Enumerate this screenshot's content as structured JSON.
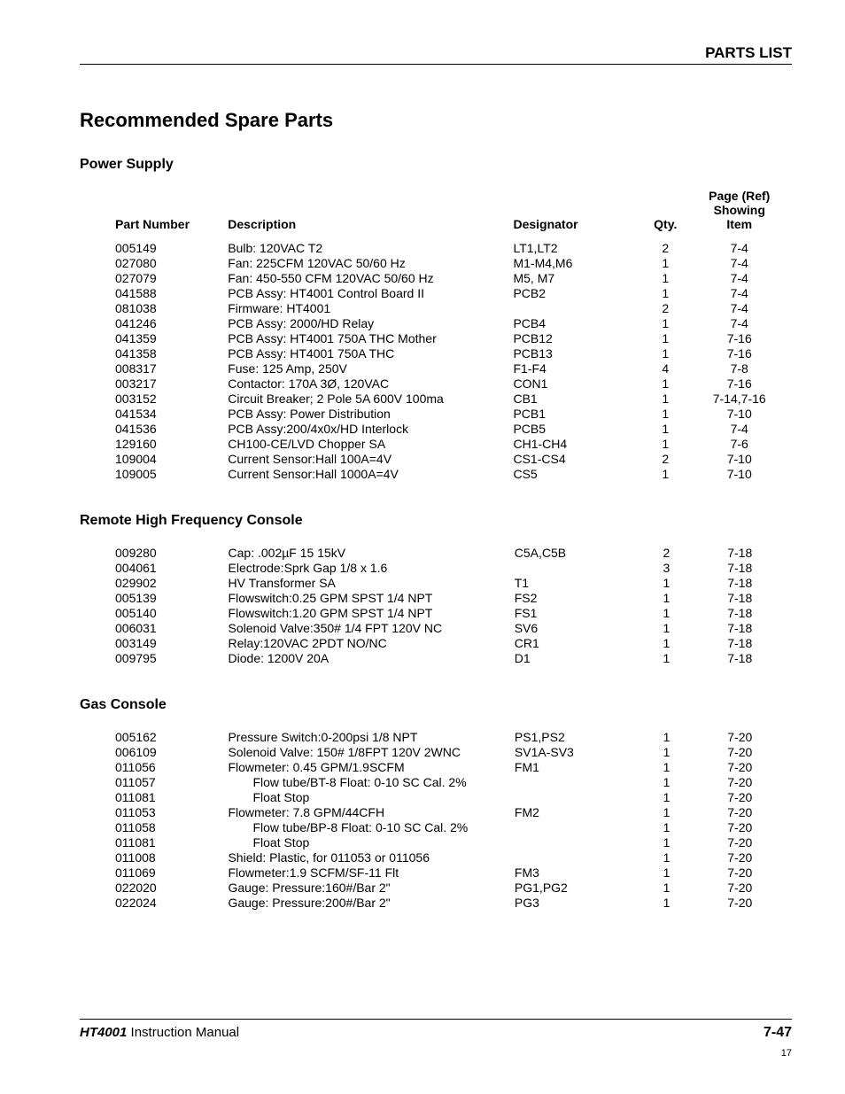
{
  "header": {
    "title": "PARTS LIST"
  },
  "main_title": "Recommended Spare Parts",
  "columns": {
    "part": "Part Number",
    "desc": "Description",
    "desig": "Designator",
    "qty": "Qty.",
    "page": "Page (Ref) Showing Item"
  },
  "sections": [
    {
      "title": "Power Supply",
      "rows": [
        {
          "part": "005149",
          "desc": "Bulb: 120VAC T2",
          "desig": "LT1,LT2",
          "qty": "2",
          "page": "7-4"
        },
        {
          "part": "027080",
          "desc": "Fan: 225CFM 120VAC 50/60 Hz",
          "desig": "M1-M4,M6",
          "qty": "1",
          "page": "7-4"
        },
        {
          "part": "027079",
          "desc": "Fan: 450-550 CFM 120VAC 50/60 Hz",
          "desig": "M5, M7",
          "qty": "1",
          "page": "7-4"
        },
        {
          "part": "041588",
          "desc": "PCB Assy: HT4001 Control Board II",
          "desig": "PCB2",
          "qty": "1",
          "page": "7-4"
        },
        {
          "part": "081038",
          "desc": "Firmware: HT4001",
          "desig": "",
          "qty": "2",
          "page": "7-4"
        },
        {
          "part": "041246",
          "desc": "PCB Assy: 2000/HD Relay",
          "desig": "PCB4",
          "qty": "1",
          "page": "7-4"
        },
        {
          "part": "041359",
          "desc": "PCB Assy: HT4001 750A THC Mother",
          "desig": "PCB12",
          "qty": "1",
          "page": "7-16"
        },
        {
          "part": "041358",
          "desc": "PCB Assy: HT4001 750A THC",
          "desig": "PCB13",
          "qty": "1",
          "page": "7-16"
        },
        {
          "part": "008317",
          "desc": "Fuse: 125 Amp, 250V",
          "desig": "F1-F4",
          "qty": "4",
          "page": "7-8"
        },
        {
          "part": "003217",
          "desc": "Contactor: 170A 3Ø, 120VAC",
          "desig": "CON1",
          "qty": "1",
          "page": "7-16"
        },
        {
          "part": "003152",
          "desc": "Circuit Breaker; 2 Pole 5A 600V 100ma",
          "desig": "CB1",
          "qty": "1",
          "page": "7-14,7-16"
        },
        {
          "part": "041534",
          "desc": "PCB Assy: Power Distribution",
          "desig": "PCB1",
          "qty": "1",
          "page": "7-10"
        },
        {
          "part": "041536",
          "desc": "PCB Assy:200/4x0x/HD Interlock",
          "desig": "PCB5",
          "qty": "1",
          "page": "7-4"
        },
        {
          "part": "129160",
          "desc": "CH100-CE/LVD Chopper SA",
          "desig": "CH1-CH4",
          "qty": "1",
          "page": "7-6"
        },
        {
          "part": "109004",
          "desc": "Current Sensor:Hall 100A=4V",
          "desig": "CS1-CS4",
          "qty": "2",
          "page": "7-10"
        },
        {
          "part": "109005",
          "desc": "Current Sensor:Hall 1000A=4V",
          "desig": "CS5",
          "qty": "1",
          "page": "7-10"
        }
      ]
    },
    {
      "title": "Remote High Frequency Console",
      "rows": [
        {
          "part": "009280",
          "desc": "Cap: .002µF 15 15kV",
          "desig": "C5A,C5B",
          "qty": "2",
          "page": "7-18"
        },
        {
          "part": "004061",
          "desc": "Electrode:Sprk Gap 1/8 x 1.6",
          "desig": "",
          "qty": "3",
          "page": "7-18"
        },
        {
          "part": "029902",
          "desc": "HV Transformer SA",
          "desig": "T1",
          "qty": "1",
          "page": "7-18"
        },
        {
          "part": "005139",
          "desc": "Flowswitch:0.25 GPM SPST 1/4 NPT",
          "desig": "FS2",
          "qty": "1",
          "page": "7-18"
        },
        {
          "part": "005140",
          "desc": "Flowswitch:1.20 GPM SPST 1/4 NPT",
          "desig": "FS1",
          "qty": "1",
          "page": "7-18"
        },
        {
          "part": "006031",
          "desc": "Solenoid Valve:350# 1/4 FPT 120V NC",
          "desig": "SV6",
          "qty": "1",
          "page": "7-18"
        },
        {
          "part": "003149",
          "desc": "Relay:120VAC 2PDT NO/NC",
          "desig": "CR1",
          "qty": "1",
          "page": "7-18"
        },
        {
          "part": "009795",
          "desc": "Diode: 1200V 20A",
          "desig": "D1",
          "qty": "1",
          "page": "7-18"
        }
      ]
    },
    {
      "title": "Gas Console",
      "rows": [
        {
          "part": "005162",
          "desc": "Pressure Switch:0-200psi 1/8 NPT",
          "desig": "PS1,PS2",
          "qty": "1",
          "page": "7-20"
        },
        {
          "part": "006109",
          "desc": "Solenoid Valve: 150# 1/8FPT 120V 2WNC",
          "desig": "SV1A-SV3",
          "qty": "1",
          "page": "7-20"
        },
        {
          "part": "011056",
          "desc": "Flowmeter: 0.45 GPM/1.9SCFM",
          "desig": "FM1",
          "qty": "1",
          "page": "7-20"
        },
        {
          "part": "011057",
          "desc": "Flow tube/BT-8 Float: 0-10 SC Cal. 2%",
          "indent": 1,
          "desig": "",
          "qty": "1",
          "page": "7-20"
        },
        {
          "part": "011081",
          "desc": "Float Stop",
          "indent": 1,
          "desig": "",
          "qty": "1",
          "page": "7-20"
        },
        {
          "part": "011053",
          "desc": "Flowmeter: 7.8 GPM/44CFH",
          "desig": "FM2",
          "qty": "1",
          "page": "7-20"
        },
        {
          "part": "011058",
          "desc": "Flow tube/BP-8 Float: 0-10 SC Cal. 2%",
          "indent": 1,
          "desig": "",
          "qty": "1",
          "page": "7-20"
        },
        {
          "part": "011081",
          "desc": "Float Stop",
          "indent": 1,
          "desig": "",
          "qty": "1",
          "page": "7-20"
        },
        {
          "part": "011008",
          "desc": "Shield: Plastic, for 011053 or 011056",
          "desig": "",
          "qty": "1",
          "page": "7-20"
        },
        {
          "part": "011069",
          "desc": "Flowmeter:1.9 SCFM/SF-11 Flt",
          "desig": "FM3",
          "qty": "1",
          "page": "7-20"
        },
        {
          "part": "022020",
          "desc": "Gauge: Pressure:160#/Bar 2\"",
          "desig": "PG1,PG2",
          "qty": "1",
          "page": "7-20"
        },
        {
          "part": "022024",
          "desc": "Gauge: Pressure:200#/Bar 2\"",
          "desig": "PG3",
          "qty": "1",
          "page": "7-20"
        }
      ]
    }
  ],
  "footer": {
    "model": "HT4001",
    "manual": " Instruction Manual",
    "page": "7-47",
    "sub": "17"
  }
}
